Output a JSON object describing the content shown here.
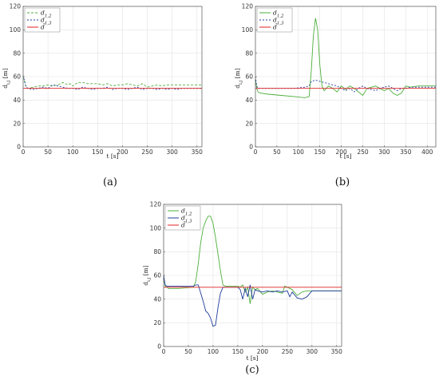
{
  "chart_data": [
    {
      "id": "a",
      "type": "line",
      "caption": "(a)",
      "xlabel": "t [s]",
      "ylabel": "d_{i,j} [m]",
      "xlim": [
        0,
        360
      ],
      "ylim": [
        0,
        120
      ],
      "xticks": [
        0,
        50,
        100,
        150,
        200,
        250,
        300,
        350
      ],
      "yticks": [
        0,
        20,
        40,
        60,
        80,
        100,
        120
      ],
      "grid": true,
      "legend": "top-left",
      "series": [
        {
          "name": "d_{1,2}",
          "color": "#4daf3c",
          "dash": "3,2",
          "x": [
            0,
            3,
            6,
            10,
            20,
            30,
            40,
            50,
            60,
            70,
            80,
            90,
            95,
            100,
            110,
            120,
            130,
            140,
            150,
            160,
            170,
            180,
            190,
            200,
            210,
            220,
            230,
            240,
            250,
            260,
            270,
            280,
            290,
            300,
            310,
            320,
            330,
            340,
            350,
            360
          ],
          "y": [
            60,
            55,
            51,
            50,
            51,
            52,
            52,
            53,
            52,
            53,
            55,
            53,
            54,
            52,
            55,
            55,
            54,
            54,
            54,
            53,
            54,
            52,
            53,
            53,
            54,
            53,
            52,
            54,
            51,
            52,
            53,
            52,
            53,
            53,
            53,
            53,
            53,
            53,
            53,
            53
          ]
        },
        {
          "name": "d_{1,3}",
          "color": "#1f3c9c",
          "dash": "2,2",
          "x": [
            0,
            3,
            6,
            10,
            20,
            30,
            40,
            50,
            60,
            70,
            80,
            90,
            100,
            110,
            120,
            130,
            140,
            150,
            160,
            170,
            180,
            190,
            200,
            210,
            220,
            230,
            240,
            250,
            260,
            270,
            280,
            290,
            300,
            310,
            320,
            330,
            340,
            350,
            360
          ],
          "y": [
            61,
            56,
            51,
            50,
            49,
            50,
            51,
            50,
            53,
            52,
            51,
            50,
            50,
            49,
            51,
            50,
            49,
            50,
            50,
            51,
            49,
            50,
            50,
            49,
            50,
            51,
            49,
            50,
            50,
            49,
            50,
            49,
            50,
            49,
            50,
            50,
            50,
            50,
            50
          ]
        },
        {
          "name": "d̄",
          "color": "#e02020",
          "dash": "",
          "x": [
            0,
            360
          ],
          "y": [
            50,
            50
          ]
        }
      ]
    },
    {
      "id": "b",
      "type": "line",
      "caption": "(b)",
      "xlabel": "t [s]",
      "ylabel": "d_{i,j} [m]",
      "xlim": [
        0,
        420
      ],
      "ylim": [
        0,
        120
      ],
      "xticks": [
        0,
        50,
        100,
        150,
        200,
        250,
        300,
        350,
        400
      ],
      "yticks": [
        0,
        20,
        40,
        60,
        80,
        100,
        120
      ],
      "grid": true,
      "legend": "top-left",
      "series": [
        {
          "name": "d_{1,2}",
          "color": "#4daf3c",
          "dash": "",
          "x": [
            0,
            3,
            6,
            10,
            30,
            60,
            90,
            115,
            125,
            130,
            135,
            140,
            145,
            150,
            155,
            160,
            170,
            180,
            190,
            200,
            210,
            220,
            230,
            240,
            250,
            260,
            270,
            280,
            290,
            300,
            310,
            320,
            330,
            340,
            350,
            360,
            380,
            400,
            420
          ],
          "y": [
            58,
            50,
            47,
            46,
            45,
            44,
            43,
            42,
            43,
            65,
            95,
            110,
            100,
            70,
            52,
            48,
            52,
            50,
            47,
            52,
            49,
            52,
            50,
            47,
            44,
            50,
            51,
            52,
            50,
            48,
            50,
            46,
            44,
            46,
            52,
            51,
            52,
            52,
            52
          ]
        },
        {
          "name": "d_{1,3}",
          "color": "#1f3c9c",
          "dash": "2,2",
          "x": [
            0,
            3,
            6,
            10,
            30,
            60,
            90,
            115,
            125,
            130,
            140,
            150,
            160,
            170,
            180,
            190,
            200,
            210,
            220,
            230,
            240,
            250,
            260,
            270,
            280,
            290,
            300,
            310,
            320,
            330,
            340,
            350,
            360,
            380,
            400,
            420
          ],
          "y": [
            60,
            52,
            50,
            50,
            50,
            50,
            50,
            51,
            52,
            56,
            57,
            56,
            55,
            54,
            53,
            52,
            50,
            48,
            50,
            47,
            50,
            52,
            50,
            49,
            48,
            50,
            51,
            52,
            50,
            48,
            50,
            50,
            51,
            51,
            51,
            51
          ]
        },
        {
          "name": "d̄",
          "color": "#e02020",
          "dash": "",
          "x": [
            0,
            420
          ],
          "y": [
            50,
            50
          ]
        }
      ]
    },
    {
      "id": "c",
      "type": "line",
      "caption": "(c)",
      "xlabel": "t [s]",
      "ylabel": "d_{i,j} [m]",
      "xlim": [
        0,
        360
      ],
      "ylim": [
        0,
        120
      ],
      "xticks": [
        0,
        50,
        100,
        150,
        200,
        250,
        300,
        350
      ],
      "yticks": [
        0,
        20,
        40,
        60,
        80,
        100,
        120
      ],
      "grid": true,
      "legend": "top-left",
      "series": [
        {
          "name": "d_{1,2}",
          "color": "#4daf3c",
          "dash": "",
          "x": [
            0,
            3,
            6,
            10,
            30,
            60,
            65,
            70,
            75,
            80,
            85,
            90,
            95,
            100,
            105,
            110,
            115,
            120,
            125,
            130,
            140,
            150,
            155,
            160,
            165,
            170,
            175,
            180,
            185,
            190,
            200,
            210,
            220,
            230,
            240,
            245,
            250,
            260,
            270,
            280,
            290,
            300,
            330,
            360
          ],
          "y": [
            58,
            51,
            50,
            49,
            49,
            50,
            55,
            70,
            88,
            100,
            106,
            110,
            110,
            104,
            92,
            78,
            64,
            52,
            51,
            51,
            51,
            51,
            50,
            52,
            46,
            50,
            36,
            50,
            48,
            49,
            44,
            46,
            47,
            46,
            45,
            51,
            50,
            48,
            43,
            46,
            47,
            47,
            47,
            47
          ]
        },
        {
          "name": "d_{1,3}",
          "color": "#1f3c9c",
          "dash": "",
          "x": [
            0,
            3,
            6,
            10,
            30,
            60,
            65,
            70,
            75,
            80,
            85,
            90,
            95,
            100,
            105,
            110,
            115,
            120,
            130,
            140,
            150,
            155,
            160,
            165,
            170,
            175,
            180,
            185,
            190,
            200,
            210,
            220,
            230,
            240,
            250,
            255,
            260,
            270,
            280,
            290,
            300,
            330,
            360
          ],
          "y": [
            60,
            52,
            51,
            51,
            51,
            51,
            52,
            52,
            45,
            38,
            30,
            28,
            24,
            17,
            18,
            33,
            45,
            50,
            50,
            50,
            50,
            48,
            40,
            49,
            42,
            52,
            40,
            48,
            47,
            46,
            47,
            46,
            47,
            46,
            47,
            42,
            46,
            41,
            40,
            42,
            47,
            47,
            47
          ]
        },
        {
          "name": "d̄",
          "color": "#e02020",
          "dash": "",
          "x": [
            0,
            360
          ],
          "y": [
            50,
            50
          ]
        }
      ]
    }
  ]
}
